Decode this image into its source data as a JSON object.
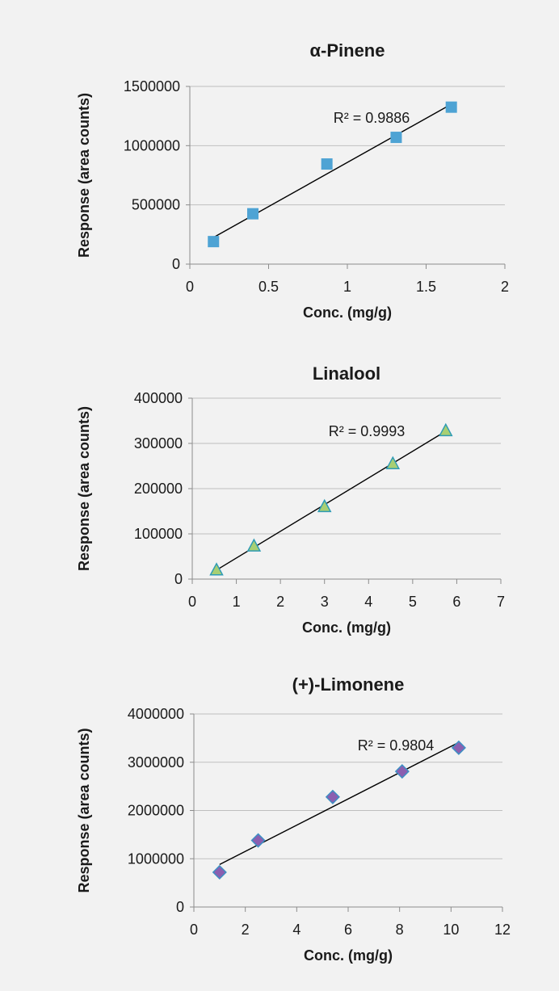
{
  "chart_data": [
    {
      "type": "scatter",
      "title": "α-Pinene",
      "xlabel": "Conc. (mg/g)",
      "ylabel": "Response (area counts)",
      "xlim": [
        0,
        2
      ],
      "ylim": [
        0,
        1500000
      ],
      "xticks": [
        "0",
        "0.5",
        "1",
        "1.5",
        "2"
      ],
      "yticks": [
        "0",
        "500000",
        "1000000",
        "1500000"
      ],
      "grid": true,
      "marker": "square",
      "marker_color": "#4ea3d4",
      "series": [
        {
          "x": [
            0.15,
            0.4,
            0.87,
            1.31,
            1.66
          ],
          "y": [
            190000,
            425000,
            845000,
            1070000,
            1325000
          ]
        }
      ],
      "trendline": {
        "x": [
          0.15,
          1.66
        ],
        "y": [
          225000,
          1350000
        ]
      },
      "annotation": "R² = 0.9886"
    },
    {
      "type": "scatter",
      "title": "Linalool",
      "xlabel": "Conc. (mg/g)",
      "ylabel": "Response (area counts)",
      "xlim": [
        0,
        7
      ],
      "ylim": [
        0,
        400000
      ],
      "xticks": [
        "0",
        "1",
        "2",
        "3",
        "4",
        "5",
        "6",
        "7"
      ],
      "yticks": [
        "0",
        "100000",
        "200000",
        "300000",
        "400000"
      ],
      "grid": true,
      "marker": "triangle",
      "marker_color": "#a8cf73",
      "marker_edge": "#2e9bb5",
      "series": [
        {
          "x": [
            0.55,
            1.4,
            3.0,
            4.55,
            5.75
          ],
          "y": [
            20000,
            73000,
            160000,
            255000,
            328000
          ]
        }
      ],
      "trendline": {
        "x": [
          0.55,
          5.75
        ],
        "y": [
          20000,
          327000
        ]
      },
      "annotation": "R² = 0.9993"
    },
    {
      "type": "scatter",
      "title": "(+)-Limonene",
      "xlabel": "Conc. (mg/g)",
      "ylabel": "Response (area counts)",
      "xlim": [
        0,
        12
      ],
      "ylim": [
        0,
        4000000
      ],
      "xticks": [
        "0",
        "2",
        "4",
        "6",
        "8",
        "10",
        "12"
      ],
      "yticks": [
        "0",
        "1000000",
        "2000000",
        "3000000",
        "4000000"
      ],
      "grid": true,
      "marker": "diamond",
      "marker_color": "#8b5fb0",
      "marker_edge": "#3d8fc4",
      "series": [
        {
          "x": [
            1.0,
            2.5,
            5.4,
            8.1,
            10.3
          ],
          "y": [
            720000,
            1380000,
            2280000,
            2810000,
            3300000
          ]
        }
      ],
      "trendline": {
        "x": [
          1.0,
          10.3
        ],
        "y": [
          880000,
          3410000
        ]
      },
      "annotation": "R² = 0.9804"
    }
  ]
}
